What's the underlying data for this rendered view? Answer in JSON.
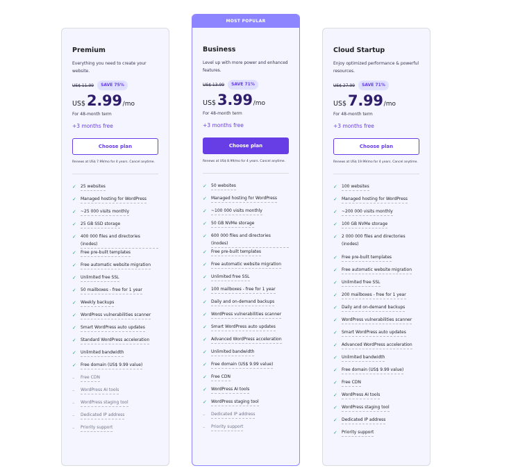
{
  "plans": [
    {
      "name": "Premium",
      "description": "Everything you need to create your website.",
      "old_price": "US$ 11.99",
      "save_badge": "SAVE 75%",
      "currency": "US$",
      "price": "2.99",
      "period": "/mo",
      "term": "For 48-month term",
      "bonus": "+3 months free",
      "cta": "Choose plan",
      "renewal": "Renews at US$ 7.99/mo for 4 years. Cancel anytime.",
      "features": [
        {
          "text": "25 websites",
          "included": true
        },
        {
          "text": "Managed hosting for WordPress",
          "included": true
        },
        {
          "text": "~25 000 visits monthly",
          "included": true
        },
        {
          "text": "25 GB SSD storage",
          "included": true
        },
        {
          "text": "400 000 files and directories (inodes)",
          "included": true
        },
        {
          "text": "Free pre-built templates",
          "included": true
        },
        {
          "text": "Free automatic website migration",
          "included": true
        },
        {
          "text": "Unlimited free SSL",
          "included": true
        },
        {
          "text": "50 mailboxes - free for 1 year",
          "included": true
        },
        {
          "text": "Weekly backups",
          "included": true
        },
        {
          "text": "WordPress vulnerabilities scanner",
          "included": true
        },
        {
          "text": "Smart WordPress auto updates",
          "included": true
        },
        {
          "text": "Standard WordPress acceleration",
          "included": true
        },
        {
          "text": "Unlimited bandwidth",
          "included": true
        },
        {
          "text": "Free domain (US$ 9.99 value)",
          "included": true
        },
        {
          "text": "Free CDN",
          "included": false
        },
        {
          "text": "WordPress AI tools",
          "included": false
        },
        {
          "text": "WordPress staging tool",
          "included": false
        },
        {
          "text": "Dedicated IP address",
          "included": false
        },
        {
          "text": "Priority support",
          "included": false
        }
      ]
    },
    {
      "badge": "MOST POPULAR",
      "name": "Business",
      "description": "Level up with more power and enhanced features.",
      "old_price": "US$ 13.99",
      "save_badge": "SAVE 71%",
      "currency": "US$",
      "price": "3.99",
      "period": "/mo",
      "term": "For 48-month term",
      "bonus": "+3 months free",
      "cta": "Choose plan",
      "renewal": "Renews at US$ 8.99/mo for 4 years. Cancel anytime.",
      "features": [
        {
          "text": "50 websites",
          "included": true
        },
        {
          "text": "Managed hosting for WordPress",
          "included": true
        },
        {
          "text": "~100 000 visits monthly",
          "included": true
        },
        {
          "text": "50 GB NVMe storage",
          "included": true
        },
        {
          "text": "600 000 files and directories (inodes)",
          "included": true
        },
        {
          "text": "Free pre-built templates",
          "included": true
        },
        {
          "text": "Free automatic website migration",
          "included": true
        },
        {
          "text": "Unlimited free SSL",
          "included": true
        },
        {
          "text": "100 mailboxes - free for 1 year",
          "included": true
        },
        {
          "text": "Daily and on-demand backups",
          "included": true
        },
        {
          "text": "WordPress vulnerabilities scanner",
          "included": true
        },
        {
          "text": "Smart WordPress auto updates",
          "included": true
        },
        {
          "text": "Advanced WordPress acceleration",
          "included": true
        },
        {
          "text": "Unlimited bandwidth",
          "included": true
        },
        {
          "text": "Free domain (US$ 9.99 value)",
          "included": true
        },
        {
          "text": "Free CDN",
          "included": true
        },
        {
          "text": "WordPress AI tools",
          "included": true
        },
        {
          "text": "WordPress staging tool",
          "included": true
        },
        {
          "text": "Dedicated IP address",
          "included": false
        },
        {
          "text": "Priority support",
          "included": false
        }
      ]
    },
    {
      "name": "Cloud Startup",
      "description": "Enjoy optimized performance & powerful resources.",
      "old_price": "US$ 27.99",
      "save_badge": "SAVE 71%",
      "currency": "US$",
      "price": "7.99",
      "period": "/mo",
      "term": "For 48-month term",
      "bonus": "+3 months free",
      "cta": "Choose plan",
      "renewal": "Renews at US$ 19.99/mo for 4 years. Cancel anytime.",
      "features": [
        {
          "text": "100 websites",
          "included": true
        },
        {
          "text": "Managed hosting for WordPress",
          "included": true
        },
        {
          "text": "~200 000 visits monthly",
          "included": true
        },
        {
          "text": "100 GB NVMe storage",
          "included": true
        },
        {
          "text": "2 000 000 files and directories (inodes)",
          "included": true,
          "wrap": true
        },
        {
          "text": "Free pre-built templates",
          "included": true
        },
        {
          "text": "Free automatic website migration",
          "included": true
        },
        {
          "text": "Unlimited free SSL",
          "included": true
        },
        {
          "text": "200 mailboxes - free for 1 year",
          "included": true
        },
        {
          "text": "Daily and on-demand backups",
          "included": true
        },
        {
          "text": "WordPress vulnerabilities scanner",
          "included": true
        },
        {
          "text": "Smart WordPress auto updates",
          "included": true
        },
        {
          "text": "Advanced WordPress acceleration",
          "included": true
        },
        {
          "text": "Unlimited bandwidth",
          "included": true
        },
        {
          "text": "Free domain (US$ 9.99 value)",
          "included": true
        },
        {
          "text": "Free CDN",
          "included": true
        },
        {
          "text": "WordPress AI tools",
          "included": true
        },
        {
          "text": "WordPress staging tool",
          "included": true
        },
        {
          "text": "Dedicated IP address",
          "included": true
        },
        {
          "text": "Priority support",
          "included": true
        }
      ]
    }
  ],
  "icons": {
    "included": "check-icon",
    "excluded": "dash-icon"
  },
  "colors": {
    "accent": "#673de6",
    "banner": "#8c85ff",
    "check": "#00b090",
    "card_bg": "#f4f5ff",
    "price": "#2f1c6a"
  }
}
